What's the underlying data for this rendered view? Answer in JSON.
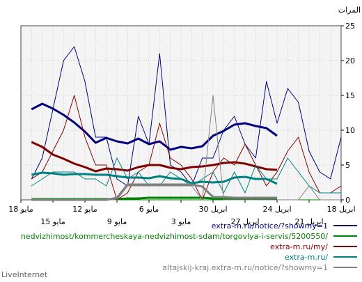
{
  "chart_data": {
    "type": "line",
    "ylabel": "المرات",
    "ylim": [
      0,
      25
    ],
    "y_ticks": [
      0,
      5,
      10,
      15,
      20,
      25
    ],
    "x_ticks_row1": [
      {
        "day": 0,
        "label": "18 ابريل"
      },
      {
        "day": 6,
        "label": "24 ابريل"
      },
      {
        "day": 12,
        "label": "30 ابريل"
      },
      {
        "day": 18,
        "label": "6 مايو"
      },
      {
        "day": 24,
        "label": "12 مايو"
      },
      {
        "day": 30,
        "label": "18 مايو"
      }
    ],
    "x_ticks_row2": [
      {
        "day": 3,
        "label": "21 ابريل"
      },
      {
        "day": 9,
        "label": "27 ابريل"
      },
      {
        "day": 15,
        "label": "3 مايو"
      },
      {
        "day": 21,
        "label": "9 مايو"
      },
      {
        "day": 27,
        "label": "15 مايو"
      }
    ],
    "grid": true,
    "legend_position": "bottom",
    "brand": "LiveInternet",
    "series": [
      {
        "name": "extra-m.ru/notice/?showmy=1",
        "color": "#000080",
        "values": [
          9,
          3,
          4,
          7,
          14,
          16,
          11,
          17,
          6,
          8,
          12,
          10,
          6,
          6,
          2,
          4,
          5,
          21,
          8,
          12,
          2,
          3,
          9,
          9,
          17,
          22,
          20,
          13,
          6,
          3
        ]
      },
      {
        "name": "extra-m.ru/notice/?showmy=1 (average)",
        "color": "#000080",
        "avg": true,
        "values": [
          null,
          null,
          null,
          null,
          null,
          null,
          9.2,
          10.3,
          10.6,
          11,
          10.8,
          9.9,
          9.2,
          7.7,
          7.4,
          7.6,
          7.2,
          8.4,
          8,
          8.8,
          8.1,
          8.4,
          8.9,
          8.2,
          9.8,
          11.1,
          12.2,
          13.1,
          13.8,
          13
        ]
      },
      {
        "name": "nedvizhimost/kommercheskaya-nedvizhimost-sdam/torgovlya-i-servis/5200550/",
        "color": "#008000",
        "values": [
          0,
          0,
          0,
          0,
          0,
          0,
          0,
          0,
          0,
          0,
          0,
          0,
          0,
          0,
          0,
          0,
          0,
          0,
          0,
          0,
          0,
          0,
          0,
          0,
          0,
          0,
          0,
          0,
          0,
          0
        ]
      },
      {
        "name": "nedvizhimost/kommercheskaya-nedvizhimost-sdam/torgovlya-i-servis/5200550/ (average)",
        "color": "#008000",
        "avg": true,
        "values": [
          null,
          null,
          null,
          null,
          null,
          null,
          0.2,
          0.2,
          0.2,
          0.2,
          0.2,
          0.2,
          0.2,
          0.3,
          0.3,
          0.3,
          0.3,
          0.3,
          0.3,
          0.2,
          0.2,
          0.1,
          0.1,
          0.1,
          0.1,
          0.1,
          0.1,
          0.1,
          0.1,
          0.1
        ]
      },
      {
        "name": "extra-m.ru/my/",
        "color": "#800000",
        "values": [
          2,
          1,
          1,
          4,
          9,
          7,
          4,
          2,
          5,
          8,
          5,
          6,
          4,
          0,
          3,
          5,
          6,
          11,
          5,
          4,
          1,
          0,
          5,
          5,
          9,
          15,
          10,
          7,
          4,
          3
        ]
      },
      {
        "name": "extra-m.ru/my/ (average)",
        "color": "#800000",
        "avg": true,
        "values": [
          null,
          null,
          null,
          null,
          null,
          null,
          4.3,
          4.4,
          4.8,
          5.2,
          5.4,
          5.3,
          5,
          4.8,
          4.7,
          4.4,
          4.6,
          5,
          5,
          4.7,
          4.2,
          4.4,
          4.5,
          4.1,
          4.7,
          5.2,
          5.9,
          6.5,
          7.6,
          8.3
        ]
      },
      {
        "name": "extra-m.ru/",
        "color": "#008080",
        "values": [
          1,
          1,
          1,
          2,
          4,
          6,
          3,
          3,
          5,
          1,
          4,
          1,
          4,
          3,
          2,
          3,
          4,
          2,
          2,
          4,
          3,
          6,
          2,
          3,
          3,
          4,
          4,
          4,
          3,
          2
        ]
      },
      {
        "name": "extra-m.ru/ (average)",
        "color": "#008080",
        "avg": true,
        "values": [
          null,
          null,
          null,
          null,
          null,
          null,
          2.3,
          3,
          3,
          3.3,
          3.2,
          2.6,
          2.5,
          2.6,
          2.4,
          3,
          3.1,
          3.4,
          3.1,
          3.2,
          3.2,
          3.4,
          3.6,
          3.6,
          3.7,
          3.7,
          3.6,
          3.8,
          3.9,
          3.6
        ]
      },
      {
        "name": "altajskij-kraj.extra-m.ru/notice/?showmy=1",
        "color": "#808080",
        "values": [
          0,
          0,
          0,
          2,
          0,
          0,
          0,
          0,
          0,
          0,
          0,
          0,
          15,
          0,
          2,
          2,
          2,
          2,
          2,
          2,
          2,
          0,
          0,
          0,
          0,
          0,
          0,
          0,
          0,
          0
        ]
      },
      {
        "name": "altajskij-kraj.extra-m.ru/notice/?showmy=1 (average)",
        "color": "#808080",
        "avg": true,
        "values": [
          null,
          null,
          null,
          null,
          null,
          null,
          0.3,
          0.3,
          0.3,
          0.3,
          0.3,
          0.4,
          0.4,
          1.9,
          2.2,
          2.2,
          2.2,
          2.2,
          2.2,
          2.2,
          2.2,
          0.3,
          0,
          0,
          0,
          0,
          0,
          0,
          0,
          0
        ]
      }
    ]
  },
  "legend": [
    {
      "label": "extra-m.ru/notice/?showmy=1",
      "color": "#000080"
    },
    {
      "label": "nedvizhimost/kommercheskaya-nedvizhimost-sdam/torgovlya-i-servis/5200550/",
      "color": "#008000"
    },
    {
      "label": "extra-m.ru/my/",
      "color": "#800000"
    },
    {
      "label": "extra-m.ru/",
      "color": "#008080"
    },
    {
      "label": "altajskij-kraj.extra-m.ru/notice/?showmy=1",
      "color": "#808080"
    }
  ]
}
